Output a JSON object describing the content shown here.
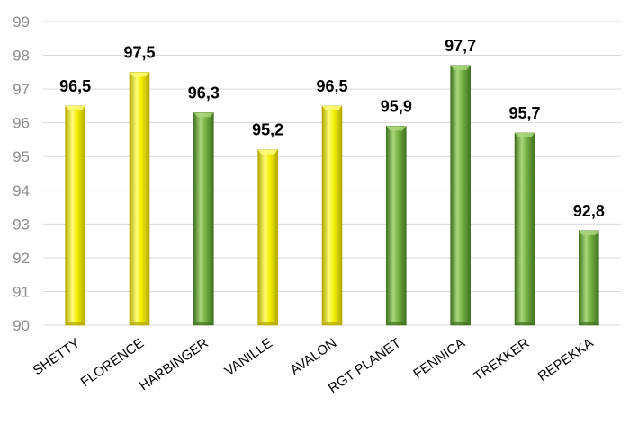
{
  "chart_data": {
    "type": "bar",
    "title": "",
    "xlabel": "",
    "ylabel": "",
    "ylim": [
      90,
      99
    ],
    "yticks": [
      90,
      91,
      92,
      93,
      94,
      95,
      96,
      97,
      98,
      99
    ],
    "grid": true,
    "categories": [
      "SHETTY",
      "FLORENCE",
      "HARBINGER",
      "VANILLE",
      "AVALON",
      "RGT PLANET",
      "FENNICA",
      "TREKKER",
      "REPEKKA"
    ],
    "values": [
      96.5,
      97.5,
      96.3,
      95.2,
      96.5,
      95.9,
      97.7,
      95.7,
      92.8
    ],
    "labels": [
      "96,5",
      "97,5",
      "96,3",
      "95,2",
      "96,5",
      "95,9",
      "97,7",
      "95,7",
      "92,8"
    ],
    "bar_colors": [
      "yellow",
      "yellow",
      "green",
      "yellow",
      "yellow",
      "green",
      "green",
      "green",
      "green"
    ]
  },
  "colors": {
    "yellow_light": "#fdfd7a",
    "yellow": "#f2ee00",
    "yellow_dark": "#b3a800",
    "green_light": "#a9d67a",
    "green": "#76b043",
    "green_dark": "#3f7320",
    "grid": "#d9d9d9",
    "tick_text": "#8c8c8c",
    "label_text": "#000000",
    "category_text": "#000000"
  }
}
